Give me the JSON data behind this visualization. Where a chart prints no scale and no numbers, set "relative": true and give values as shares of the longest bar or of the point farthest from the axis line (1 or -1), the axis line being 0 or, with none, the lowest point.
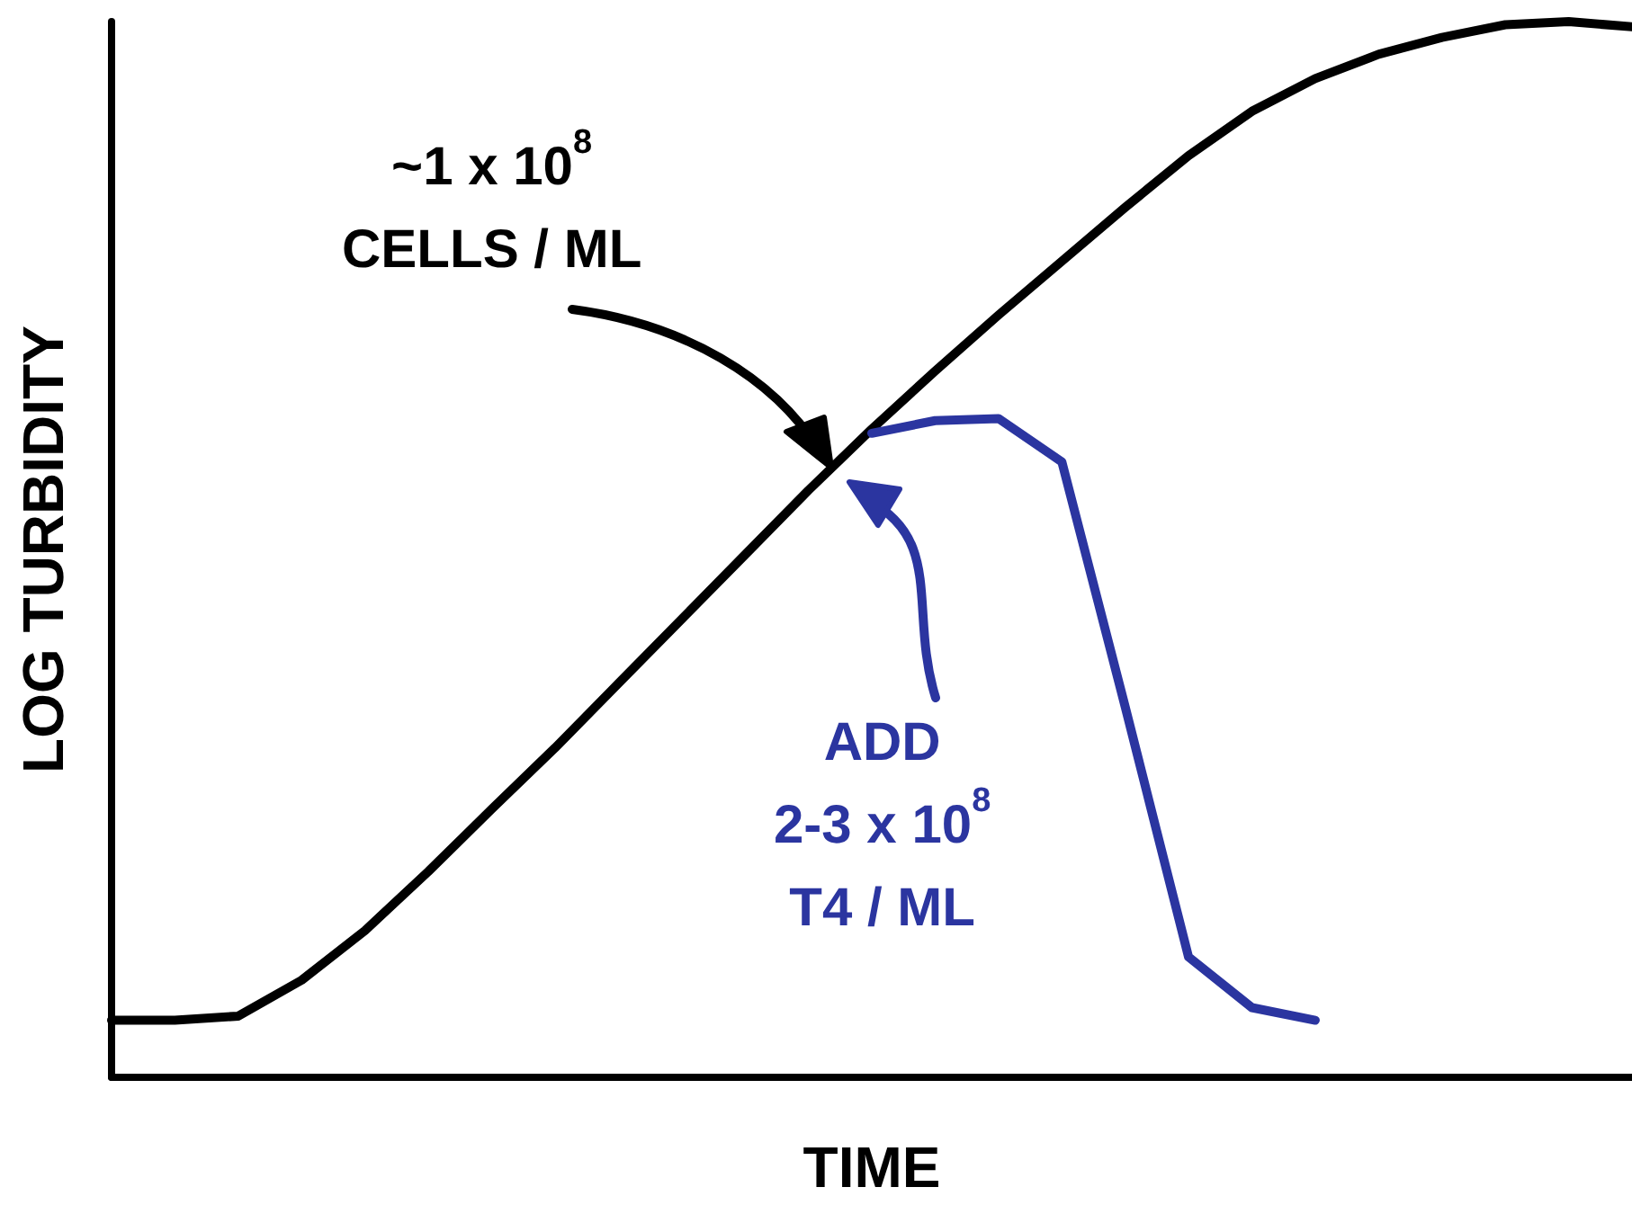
{
  "chart_data": {
    "type": "line",
    "relative": true,
    "xlabel": "TIME",
    "ylabel": "LOG TURBIDITY",
    "categories": [
      null,
      null,
      null,
      null,
      null,
      null,
      null,
      null,
      null,
      null,
      null,
      null,
      null,
      null,
      null,
      null,
      null,
      null,
      null,
      null,
      null,
      null,
      null,
      null,
      null
    ],
    "series": [
      {
        "color": "#000000",
        "values": [
          0.054,
          0.054,
          0.058,
          0.092,
          0.139,
          0.195,
          0.254,
          0.312,
          0.373,
          0.434,
          0.495,
          0.556,
          0.614,
          0.669,
          0.722,
          0.773,
          0.824,
          0.873,
          0.915,
          0.946,
          0.969,
          0.985,
          0.997,
          1,
          0.995
        ]
      },
      {
        "color": "#2b35a0",
        "values": [
          null,
          null,
          null,
          null,
          null,
          null,
          null,
          null,
          null,
          null,
          null,
          null,
          0.61,
          0.622,
          0.624,
          0.583,
          0.351,
          0.114,
          0.066,
          0.054,
          null,
          null,
          null,
          null,
          null
        ]
      }
    ],
    "annotations": [
      "~1 x 10$^{8}$\nCELLS / ML",
      "ADD\n2-3 x 10$^{8}$\nT4 / ML"
    ],
    "grid": false,
    "marker": "none",
    "line_style": "solid"
  }
}
